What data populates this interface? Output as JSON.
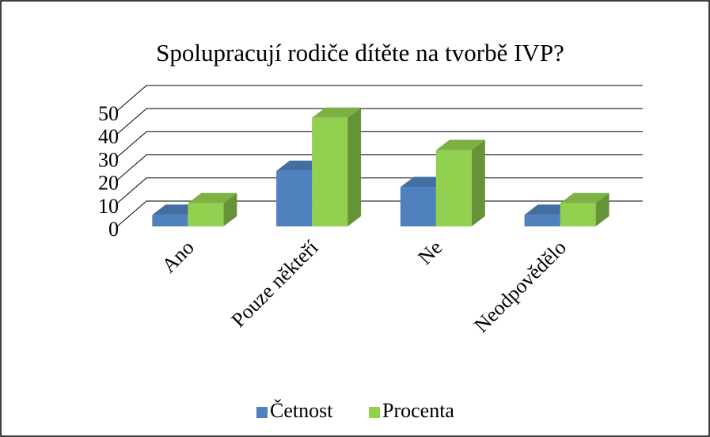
{
  "chart_data": {
    "type": "bar3d",
    "title": "Spolupracují rodiče dítěte na tvorbě IVP?",
    "categories": [
      "Ano",
      "Pouze někteří",
      "Ne",
      "Neodpovědělo"
    ],
    "series": [
      {
        "name": "Četnost",
        "color": "#4f81bd",
        "values": [
          5,
          24,
          17,
          5
        ]
      },
      {
        "name": "Procenta",
        "color": "#92d050",
        "values": [
          10,
          47,
          33,
          10
        ]
      }
    ],
    "ylim": [
      0,
      50
    ],
    "yticks": [
      0,
      10,
      20,
      30,
      40,
      50
    ],
    "grid": true,
    "legend": "bottom"
  }
}
